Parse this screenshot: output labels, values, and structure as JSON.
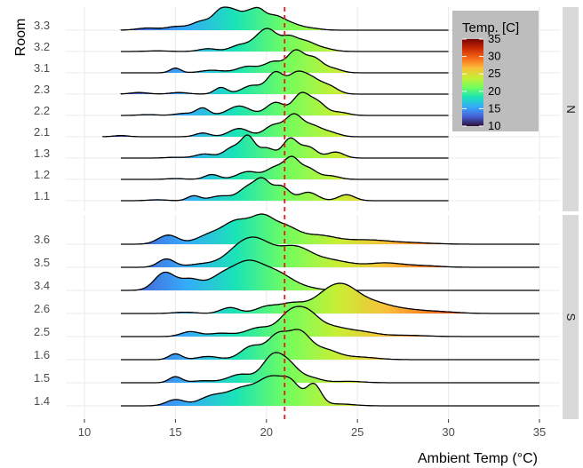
{
  "chart_data": {
    "type": "ridgeline",
    "xlabel": "Ambient Temp (°C)",
    "ylabel": "Room",
    "xlim": [
      10,
      35
    ],
    "x_ticks": [
      10,
      15,
      20,
      25,
      30,
      35
    ],
    "reference_line": {
      "x": 21,
      "color": "#e41a1c",
      "style": "dashed"
    },
    "legend": {
      "title": "Temp. [C]",
      "position": "top-right",
      "range": [
        10,
        35
      ],
      "ticks": [
        10,
        15,
        20,
        25,
        30,
        35
      ],
      "colormap": [
        "#30123b",
        "#4662d7",
        "#36aaf9",
        "#1ae4b6",
        "#72fe5e",
        "#c7ef34",
        "#fabe3a",
        "#f66b19",
        "#cb2a04",
        "#7a0403"
      ]
    },
    "facets": [
      {
        "label": "N",
        "rooms": [
          {
            "name": "3.3",
            "range": [
              12,
              30
            ],
            "peaks": [
              [
                13.5,
                0.12,
                0.6
              ],
              [
                15,
                0.18,
                0.5
              ],
              [
                16.5,
                0.5,
                0.6
              ],
              [
                17.5,
                0.9,
                0.4
              ],
              [
                18.2,
                0.85,
                0.4
              ],
              [
                19,
                0.8,
                0.4
              ],
              [
                19.6,
                0.75,
                0.35
              ],
              [
                20.4,
                0.72,
                0.5
              ],
              [
                21.3,
                0.3,
                0.5
              ],
              [
                22.3,
                0.12,
                0.6
              ]
            ]
          },
          {
            "name": "3.2",
            "range": [
              12,
              30
            ],
            "peaks": [
              [
                14,
                0.04,
                0.6
              ],
              [
                16.8,
                0.18,
                0.5
              ],
              [
                18.5,
                0.38,
                0.5
              ],
              [
                19.6,
                0.75,
                0.5
              ],
              [
                20.2,
                1.0,
                0.45
              ],
              [
                21.2,
                0.85,
                0.45
              ],
              [
                22.1,
                0.55,
                0.5
              ],
              [
                23.0,
                0.22,
                0.6
              ]
            ]
          },
          {
            "name": "3.1",
            "range": [
              12,
              30
            ],
            "peaks": [
              [
                15,
                0.22,
                0.3
              ],
              [
                17,
                0.12,
                0.6
              ],
              [
                19,
                0.3,
                0.6
              ],
              [
                20.4,
                0.5,
                0.5
              ],
              [
                21.6,
                1.0,
                0.45
              ],
              [
                22.6,
                0.65,
                0.45
              ],
              [
                23.6,
                0.2,
                0.5
              ]
            ]
          },
          {
            "name": "2.3",
            "range": [
              12,
              30
            ],
            "peaks": [
              [
                13,
                0.06,
                0.5
              ],
              [
                15.2,
                0.06,
                0.5
              ],
              [
                17.5,
                0.25,
                0.35
              ],
              [
                19.2,
                0.32,
                0.55
              ],
              [
                20.5,
                0.8,
                0.45
              ],
              [
                21.6,
                0.65,
                0.45
              ],
              [
                22.4,
                0.55,
                0.5
              ],
              [
                23.4,
                0.3,
                0.5
              ]
            ]
          },
          {
            "name": "2.2",
            "range": [
              12,
              30
            ],
            "peaks": [
              [
                13.5,
                0.04,
                0.5
              ],
              [
                15.5,
                0.1,
                0.5
              ],
              [
                16.5,
                0.35,
                0.35
              ],
              [
                18.5,
                0.45,
                0.6
              ],
              [
                20.5,
                0.62,
                0.5
              ],
              [
                21.9,
                1.0,
                0.45
              ],
              [
                22.8,
                0.6,
                0.45
              ],
              [
                24,
                0.15,
                0.5
              ]
            ]
          },
          {
            "name": "2.1",
            "range": [
              11,
              30
            ],
            "peaks": [
              [
                12,
                0.06,
                0.4
              ],
              [
                16.5,
                0.18,
                0.4
              ],
              [
                18.5,
                0.4,
                0.55
              ],
              [
                20.4,
                0.55,
                0.5
              ],
              [
                21.5,
                1.0,
                0.45
              ],
              [
                22.5,
                0.5,
                0.5
              ],
              [
                23.5,
                0.2,
                0.5
              ]
            ]
          },
          {
            "name": "1.3",
            "range": [
              12,
              30
            ],
            "peaks": [
              [
                15,
                0.04,
                0.5
              ],
              [
                16.6,
                0.2,
                0.5
              ],
              [
                18.2,
                0.55,
                0.5
              ],
              [
                19.0,
                0.95,
                0.35
              ],
              [
                20.0,
                0.5,
                0.45
              ],
              [
                21.3,
                0.95,
                0.4
              ],
              [
                22.3,
                0.55,
                0.45
              ],
              [
                23.8,
                0.3,
                0.45
              ]
            ]
          },
          {
            "name": "1.2",
            "range": [
              12,
              30
            ],
            "peaks": [
              [
                15,
                0.04,
                0.5
              ],
              [
                17.0,
                0.25,
                0.4
              ],
              [
                19,
                0.4,
                0.6
              ],
              [
                20.5,
                0.6,
                0.5
              ],
              [
                21.4,
                1.0,
                0.4
              ],
              [
                22.3,
                0.55,
                0.45
              ],
              [
                23.5,
                0.18,
                0.5
              ]
            ]
          },
          {
            "name": "1.1",
            "range": [
              12,
              30
            ],
            "peaks": [
              [
                14,
                0.04,
                0.5
              ],
              [
                16,
                0.2,
                0.35
              ],
              [
                17.5,
                0.2,
                0.6
              ],
              [
                19.0,
                0.55,
                0.5
              ],
              [
                19.8,
                0.75,
                0.4
              ],
              [
                20.8,
                0.6,
                0.45
              ],
              [
                22.3,
                0.35,
                0.5
              ],
              [
                24.4,
                0.25,
                0.45
              ]
            ]
          }
        ]
      },
      {
        "label": "S",
        "rooms": [
          {
            "name": "3.6",
            "range": [
              12,
              35
            ],
            "peaks": [
              [
                14.6,
                0.4,
                0.55
              ],
              [
                16.8,
                0.35,
                0.7
              ],
              [
                18.4,
                1.0,
                0.8
              ],
              [
                19.8,
                0.95,
                0.6
              ],
              [
                21.0,
                0.68,
                0.7
              ],
              [
                22.8,
                0.38,
                1.0
              ],
              [
                25.5,
                0.18,
                1.2
              ],
              [
                28,
                0.06,
                1.2
              ]
            ]
          },
          {
            "name": "3.5",
            "range": [
              12,
              35
            ],
            "peaks": [
              [
                14.5,
                0.3,
                0.45
              ],
              [
                16.5,
                0.12,
                0.8
              ],
              [
                18.5,
                0.6,
                0.8
              ],
              [
                19.6,
                0.75,
                0.8
              ],
              [
                21.5,
                0.7,
                0.9
              ],
              [
                23.5,
                0.25,
                1.1
              ],
              [
                26.5,
                0.15,
                0.9
              ],
              [
                28.5,
                0.06,
                1.0
              ]
            ]
          },
          {
            "name": "3.4",
            "range": [
              12,
              35
            ],
            "peaks": [
              [
                14.4,
                0.65,
                0.55
              ],
              [
                15.8,
                0.4,
                0.6
              ],
              [
                17.5,
                0.45,
                0.7
              ],
              [
                19.0,
                1.0,
                0.85
              ],
              [
                20.6,
                0.55,
                0.8
              ],
              [
                22.0,
                0.1,
                0.8
              ]
            ]
          },
          {
            "name": "2.6",
            "range": [
              12,
              35
            ],
            "peaks": [
              [
                15.5,
                0.06,
                0.6
              ],
              [
                18.0,
                0.28,
                0.5
              ],
              [
                20.0,
                0.3,
                0.6
              ],
              [
                21.4,
                0.45,
                0.7
              ],
              [
                23.2,
                0.7,
                0.8
              ],
              [
                24.3,
                1.0,
                0.8
              ],
              [
                25.8,
                0.45,
                0.9
              ],
              [
                27.5,
                0.18,
                1.0
              ],
              [
                29.5,
                0.08,
                1.0
              ]
            ]
          },
          {
            "name": "2.5",
            "range": [
              12,
              35
            ],
            "peaks": [
              [
                15.8,
                0.22,
                0.5
              ],
              [
                17.5,
                0.15,
                0.7
              ],
              [
                19.6,
                0.4,
                0.7
              ],
              [
                21.2,
                0.85,
                0.6
              ],
              [
                22.2,
                1.0,
                0.65
              ],
              [
                23.6,
                0.4,
                0.8
              ],
              [
                25.2,
                0.2,
                0.8
              ],
              [
                27.5,
                0.06,
                1.2
              ]
            ]
          },
          {
            "name": "1.6",
            "range": [
              12,
              35
            ],
            "peaks": [
              [
                15.0,
                0.22,
                0.35
              ],
              [
                16.8,
                0.12,
                0.6
              ],
              [
                19.2,
                0.5,
                0.6
              ],
              [
                20.6,
                0.85,
                0.55
              ],
              [
                21.8,
                1.0,
                0.6
              ],
              [
                23.2,
                0.35,
                0.7
              ],
              [
                25,
                0.1,
                1.0
              ]
            ]
          },
          {
            "name": "1.5",
            "range": [
              12,
              35
            ],
            "peaks": [
              [
                15.0,
                0.25,
                0.35
              ],
              [
                16.5,
                0.08,
                0.6
              ],
              [
                18.6,
                0.35,
                0.7
              ],
              [
                20.3,
                1.0,
                0.55
              ],
              [
                21.2,
                0.7,
                0.55
              ],
              [
                22.4,
                0.2,
                0.6
              ],
              [
                24.5,
                0.06,
                0.8
              ]
            ]
          },
          {
            "name": "1.4",
            "range": [
              12,
              35
            ],
            "peaks": [
              [
                15.0,
                0.2,
                0.5
              ],
              [
                17.0,
                0.3,
                0.7
              ],
              [
                18.7,
                0.55,
                0.8
              ],
              [
                20.3,
                0.85,
                0.7
              ],
              [
                21.4,
                0.6,
                0.5
              ],
              [
                22.6,
                0.68,
                0.4
              ],
              [
                24,
                0.06,
                0.8
              ]
            ]
          }
        ]
      }
    ]
  }
}
